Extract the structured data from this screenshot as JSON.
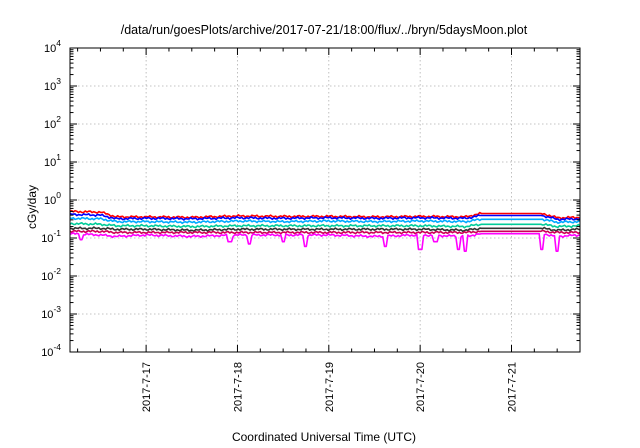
{
  "chart_data": {
    "type": "line",
    "title": "/data/run/goesPlots/archive/2017-07-21/18:00/flux/../bryn/5daysMoon.plot",
    "xlabel": "Coordinated Universal Time (UTC)",
    "ylabel": "cGy/day",
    "yscale": "log",
    "ylim": [
      0.0001,
      10000
    ],
    "xlim": [
      "2017-07-16T04:00",
      "2017-07-21T18:00"
    ],
    "grid": true,
    "x_ticks": [
      "2017-7-17",
      "2017-7-18",
      "2017-7-19",
      "2017-7-20",
      "2017-7-21"
    ],
    "y_ticks": [
      {
        "base": "10",
        "exp": "-4"
      },
      {
        "base": "10",
        "exp": "-3"
      },
      {
        "base": "10",
        "exp": "-2"
      },
      {
        "base": "10",
        "exp": "-1"
      },
      {
        "base": "10",
        "exp": "0"
      },
      {
        "base": "10",
        "exp": "1"
      },
      {
        "base": "10",
        "exp": "2"
      },
      {
        "base": "10",
        "exp": "3"
      },
      {
        "base": "10",
        "exp": "4"
      }
    ],
    "x": [
      "2017-07-16T04:00",
      "2017-07-16T12:00",
      "2017-07-16T16:00",
      "2017-07-17T00:00",
      "2017-07-17T12:00",
      "2017-07-18T00:00",
      "2017-07-18T12:00",
      "2017-07-19T00:00",
      "2017-07-19T12:00",
      "2017-07-20T00:00",
      "2017-07-20T12:00",
      "2017-07-20T16:00",
      "2017-07-21T00:00",
      "2017-07-21T08:00",
      "2017-07-21T12:00",
      "2017-07-21T18:00"
    ],
    "series": [
      {
        "color": "#ff0000",
        "values": [
          0.5,
          0.48,
          0.36,
          0.36,
          0.35,
          0.38,
          0.37,
          0.37,
          0.36,
          0.37,
          0.36,
          0.44,
          0.44,
          0.44,
          0.34,
          0.35
        ]
      },
      {
        "color": "#0000ff",
        "values": [
          0.42,
          0.4,
          0.32,
          0.33,
          0.32,
          0.34,
          0.33,
          0.34,
          0.33,
          0.34,
          0.33,
          0.39,
          0.39,
          0.39,
          0.31,
          0.32
        ]
      },
      {
        "color": "#00aaff",
        "values": [
          0.33,
          0.32,
          0.27,
          0.27,
          0.26,
          0.28,
          0.27,
          0.28,
          0.27,
          0.28,
          0.27,
          0.31,
          0.31,
          0.31,
          0.26,
          0.27
        ]
      },
      {
        "color": "#00cc99",
        "values": [
          0.24,
          0.23,
          0.21,
          0.21,
          0.2,
          0.21,
          0.21,
          0.21,
          0.21,
          0.21,
          0.2,
          0.23,
          0.23,
          0.23,
          0.2,
          0.21
        ]
      },
      {
        "color": "#333333",
        "values": [
          0.18,
          0.18,
          0.17,
          0.17,
          0.16,
          0.17,
          0.17,
          0.17,
          0.17,
          0.17,
          0.16,
          0.18,
          0.18,
          0.18,
          0.16,
          0.17
        ]
      },
      {
        "color": "#cc0055",
        "values": [
          0.15,
          0.15,
          0.14,
          0.14,
          0.14,
          0.14,
          0.14,
          0.14,
          0.14,
          0.14,
          0.14,
          0.15,
          0.15,
          0.15,
          0.14,
          0.14
        ]
      },
      {
        "color": "#ff00ff",
        "values": [
          0.13,
          0.12,
          0.11,
          0.12,
          0.11,
          0.12,
          0.12,
          0.12,
          0.11,
          0.12,
          0.11,
          0.13,
          0.13,
          0.13,
          0.11,
          0.12
        ]
      }
    ],
    "dips": [
      {
        "x": "2017-07-16T07:00",
        "y": 0.09
      },
      {
        "x": "2017-07-17T22:00",
        "y": 0.08
      },
      {
        "x": "2017-07-18T03:00",
        "y": 0.07
      },
      {
        "x": "2017-07-18T12:00",
        "y": 0.08
      },
      {
        "x": "2017-07-18T18:00",
        "y": 0.06
      },
      {
        "x": "2017-07-19T15:00",
        "y": 0.06
      },
      {
        "x": "2017-07-20T00:00",
        "y": 0.05
      },
      {
        "x": "2017-07-20T04:00",
        "y": 0.08
      },
      {
        "x": "2017-07-20T10:00",
        "y": 0.05
      },
      {
        "x": "2017-07-20T12:00",
        "y": 0.045
      },
      {
        "x": "2017-07-21T08:00",
        "y": 0.05
      },
      {
        "x": "2017-07-21T12:00",
        "y": 0.045
      }
    ]
  }
}
